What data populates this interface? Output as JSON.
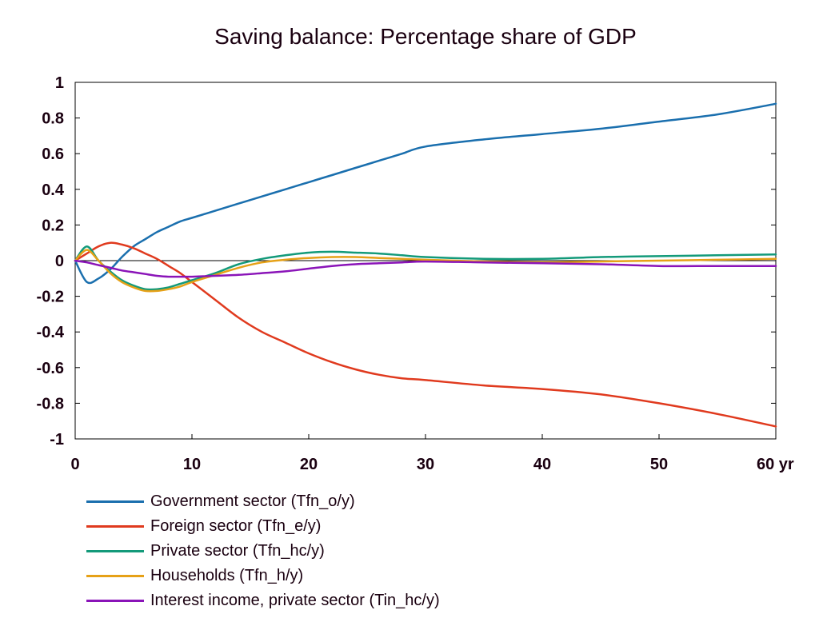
{
  "chart_data": {
    "type": "line",
    "title": "Saving balance: Percentage share of GDP",
    "xlabel": "",
    "ylabel": "",
    "xlim": [
      0,
      60
    ],
    "ylim": [
      -1,
      1
    ],
    "x_ticks": [
      {
        "value": 0,
        "label": "0"
      },
      {
        "value": 10,
        "label": "10"
      },
      {
        "value": 20,
        "label": "20"
      },
      {
        "value": 30,
        "label": "30"
      },
      {
        "value": 40,
        "label": "40"
      },
      {
        "value": 50,
        "label": "50"
      },
      {
        "value": 60,
        "label": "60 yr"
      }
    ],
    "y_ticks": [
      {
        "value": 1,
        "label": "1"
      },
      {
        "value": 0.8,
        "label": "0.8"
      },
      {
        "value": 0.6,
        "label": "0.6"
      },
      {
        "value": 0.4,
        "label": "0.4"
      },
      {
        "value": 0.2,
        "label": "0.2"
      },
      {
        "value": 0,
        "label": "0"
      },
      {
        "value": -0.2,
        "label": "-0.2"
      },
      {
        "value": -0.4,
        "label": "-0.4"
      },
      {
        "value": -0.6,
        "label": "-0.6"
      },
      {
        "value": -0.8,
        "label": "-0.8"
      },
      {
        "value": -1,
        "label": "-1"
      }
    ],
    "grid": false,
    "zero_line": true,
    "legend_position": "bottom",
    "x": [
      0,
      1,
      2,
      3,
      4,
      5,
      6,
      7,
      8,
      9,
      10,
      12,
      14,
      16,
      18,
      20,
      22,
      24,
      26,
      28,
      30,
      35,
      40,
      45,
      50,
      55,
      60
    ],
    "series": [
      {
        "name": "Government sector (Tfn_o/y)",
        "color": "#1a6fae",
        "values": [
          0,
          -0.12,
          -0.1,
          -0.05,
          0.02,
          0.08,
          0.12,
          0.16,
          0.19,
          0.22,
          0.24,
          0.28,
          0.32,
          0.36,
          0.4,
          0.44,
          0.48,
          0.52,
          0.56,
          0.6,
          0.64,
          0.68,
          0.71,
          0.74,
          0.78,
          0.82,
          0.88
        ]
      },
      {
        "name": "Foreign sector (Tfn_e/y)",
        "color": "#e03a1e",
        "values": [
          0,
          0.04,
          0.08,
          0.1,
          0.09,
          0.07,
          0.04,
          0.01,
          -0.03,
          -0.07,
          -0.12,
          -0.22,
          -0.32,
          -0.4,
          -0.46,
          -0.52,
          -0.57,
          -0.61,
          -0.64,
          -0.66,
          -0.67,
          -0.7,
          -0.72,
          -0.75,
          -0.8,
          -0.86,
          -0.93
        ]
      },
      {
        "name": "Private sector (Tfn_hc/y)",
        "color": "#139a7a",
        "values": [
          0,
          0.08,
          0.0,
          -0.06,
          -0.11,
          -0.14,
          -0.16,
          -0.16,
          -0.15,
          -0.13,
          -0.11,
          -0.07,
          -0.02,
          0.01,
          0.03,
          0.045,
          0.05,
          0.045,
          0.04,
          0.03,
          0.02,
          0.01,
          0.01,
          0.02,
          0.025,
          0.03,
          0.035
        ]
      },
      {
        "name": "Households (Tfn_h/y)",
        "color": "#e6a117",
        "values": [
          0,
          0.06,
          0.0,
          -0.07,
          -0.12,
          -0.15,
          -0.17,
          -0.17,
          -0.16,
          -0.145,
          -0.12,
          -0.08,
          -0.04,
          -0.01,
          0.005,
          0.015,
          0.02,
          0.02,
          0.015,
          0.01,
          0.005,
          -0.005,
          -0.01,
          -0.005,
          0.0,
          0.005,
          0.01
        ]
      },
      {
        "name": "Interest income, private sector (Tin_hc/y)",
        "color": "#8a14b8",
        "values": [
          0,
          -0.01,
          -0.025,
          -0.04,
          -0.055,
          -0.065,
          -0.075,
          -0.085,
          -0.09,
          -0.09,
          -0.09,
          -0.085,
          -0.08,
          -0.07,
          -0.06,
          -0.045,
          -0.03,
          -0.02,
          -0.015,
          -0.01,
          -0.005,
          -0.01,
          -0.015,
          -0.02,
          -0.03,
          -0.03,
          -0.03
        ]
      }
    ]
  }
}
